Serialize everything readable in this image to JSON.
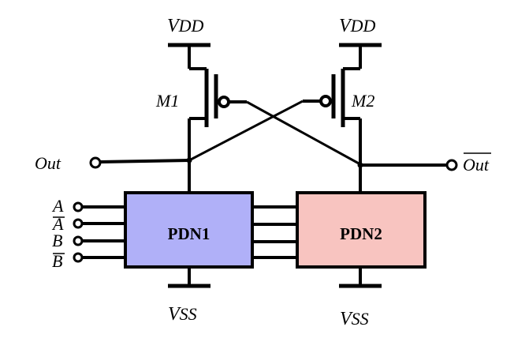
{
  "supply": {
    "vdd_base": "V",
    "vdd_sub": "DD",
    "vss_base": "V",
    "vss_sub": "SS"
  },
  "transistors": {
    "m1_label": "M1",
    "m2_label": "M2"
  },
  "outputs": {
    "out_label": "Out",
    "out_bar_label": "Out"
  },
  "inputs": [
    {
      "label": "A",
      "overbar": false
    },
    {
      "label": "A",
      "overbar": true
    },
    {
      "label": "B",
      "overbar": false
    },
    {
      "label": "B",
      "overbar": true
    }
  ],
  "blocks": {
    "pdn1": {
      "label": "PDN1",
      "fill": "#b0b0f8"
    },
    "pdn2": {
      "label": "PDN2",
      "fill": "#f8c4c0"
    }
  },
  "colors": {
    "wire": "#000000"
  }
}
